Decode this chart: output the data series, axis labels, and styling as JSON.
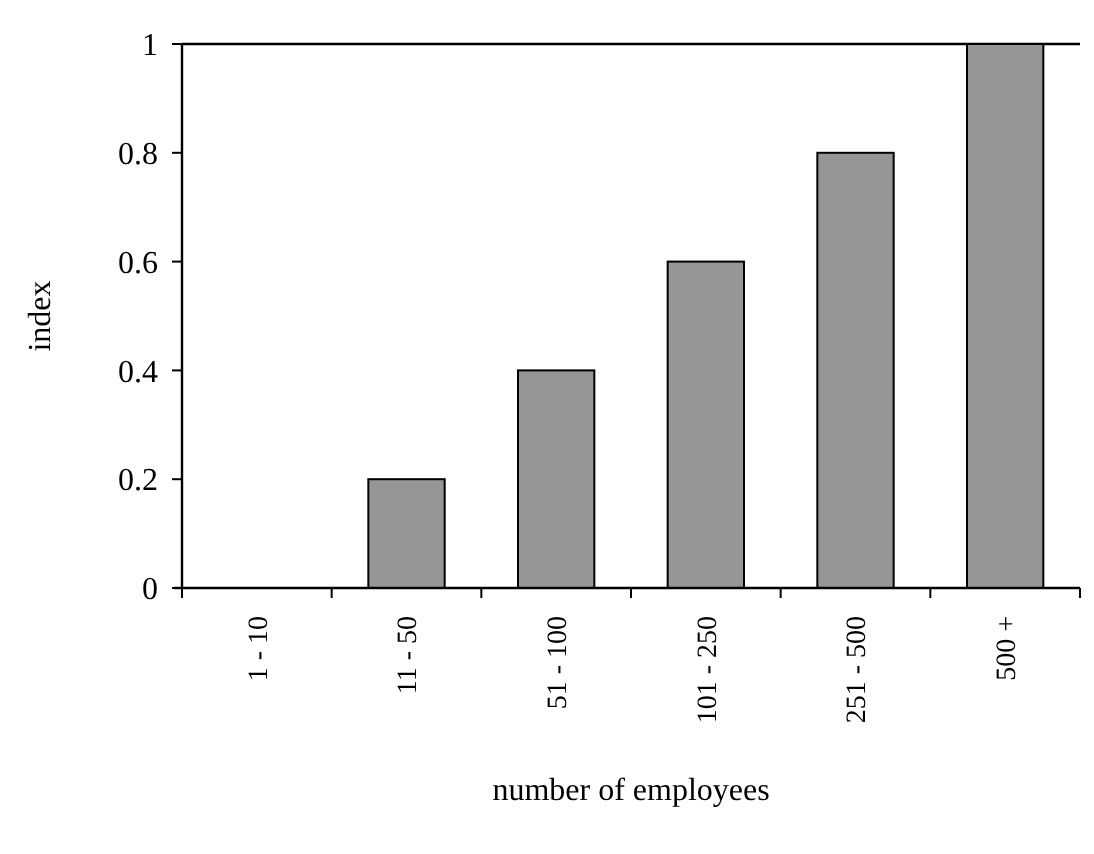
{
  "chart_data": {
    "type": "bar",
    "xlabel": "number of employees",
    "ylabel": "index",
    "categories": [
      "1 - 10",
      "11 - 50",
      "51 - 100",
      "101 - 250",
      "251 - 500",
      "500 +"
    ],
    "values": [
      0,
      0.2,
      0.4,
      0.6,
      0.8,
      1
    ],
    "color": "#969696",
    "ylim": [
      0,
      1
    ],
    "yticks": [
      0,
      0.2,
      0.4,
      0.6,
      0.8,
      1
    ],
    "grid": false
  }
}
